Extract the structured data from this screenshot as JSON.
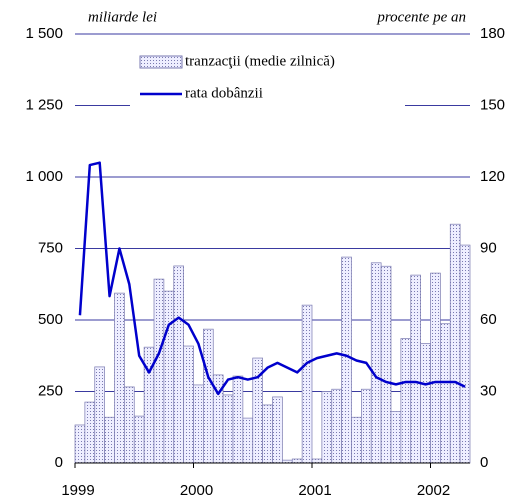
{
  "chart_data": {
    "type": "bar_line",
    "ylabel": "miliarde lei",
    "y2label": "procente pe an",
    "categories": [
      "1999",
      null,
      null,
      null,
      null,
      null,
      null,
      null,
      null,
      null,
      null,
      null,
      "2000",
      null,
      null,
      null,
      null,
      null,
      null,
      null,
      null,
      null,
      null,
      null,
      "2001",
      null,
      null,
      null,
      null,
      null,
      null,
      null,
      null,
      null,
      null,
      null,
      "2002",
      null,
      null,
      null
    ],
    "series": [
      {
        "name": "tranzacţii (medie zilnică)",
        "kind": "bar",
        "color": "#dcdcf0",
        "values": [
          133,
          213,
          336,
          160,
          594,
          266,
          164,
          405,
          643,
          601,
          689,
          409,
          273,
          468,
          308,
          238,
          304,
          157,
          367,
          203,
          231,
          10,
          14,
          552,
          14,
          250,
          258,
          720,
          160,
          258,
          700,
          688,
          180,
          435,
          657,
          418,
          664,
          487,
          835,
          762
        ]
      },
      {
        "name": "rata dobânzii",
        "kind": "line",
        "axis": "y2",
        "color": "#0000cc",
        "values": [
          62,
          125,
          126,
          70,
          90,
          75,
          45,
          38,
          46,
          58,
          61,
          58,
          50,
          36,
          29,
          35,
          36,
          35,
          36,
          40,
          42,
          40,
          38,
          42,
          44,
          45,
          46,
          45,
          43,
          42,
          36,
          34,
          33,
          34,
          34,
          33,
          34,
          34,
          34,
          32
        ]
      }
    ],
    "ylim": [
      0,
      1500
    ],
    "yticks": [
      0,
      250,
      500,
      750,
      {
        "value": 1000,
        "label": "1 000"
      },
      {
        "value": 1250,
        "label": "1 250"
      },
      {
        "value": 1500,
        "label": "1 500"
      }
    ],
    "y2lim": [
      0,
      180
    ],
    "y2ticks": [
      0,
      30,
      60,
      90,
      120,
      150,
      180
    ],
    "grid": true,
    "legend": "top"
  }
}
